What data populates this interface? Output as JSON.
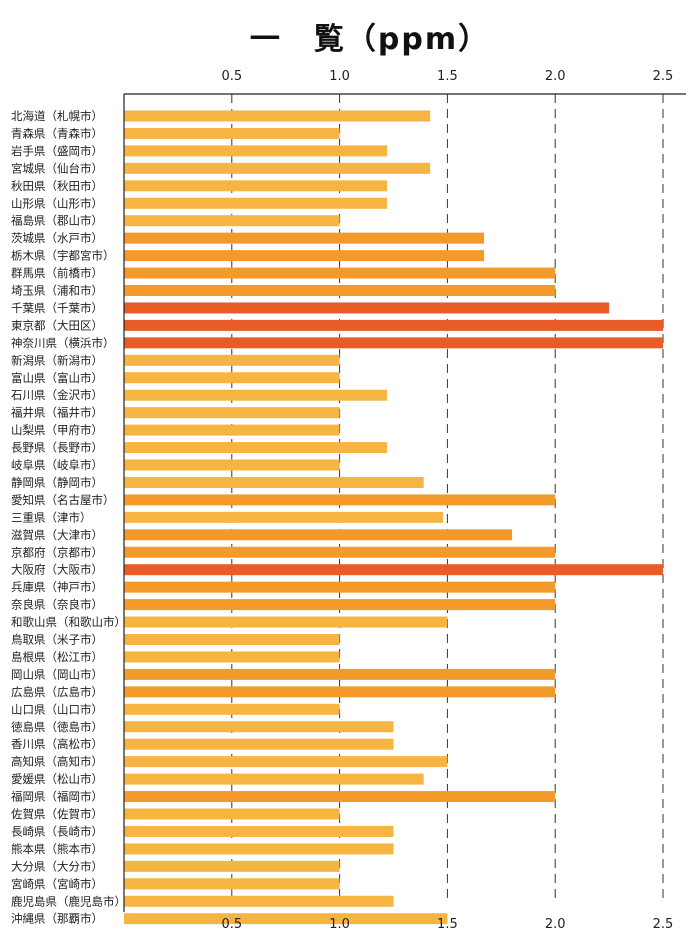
{
  "chart_data": {
    "type": "bar",
    "orientation": "horizontal",
    "title": "一　覧（ppm）",
    "xlabel": "",
    "ylabel": "",
    "xlim": [
      0,
      2.5
    ],
    "ticks": [
      "0.5",
      "1.0",
      "1.5",
      "2.0",
      "2.5"
    ],
    "tick_values": [
      0.5,
      1.0,
      1.5,
      2.0,
      2.5
    ],
    "grid": "vertical dashed",
    "colors": {
      "low": "#F6B443",
      "mid": "#F39A2B",
      "high": "#E85C2A"
    },
    "categories": [
      "北海道（札幌市）",
      "青森県（青森市）",
      "岩手県（盛岡市）",
      "宮城県（仙台市）",
      "秋田県（秋田市）",
      "山形県（山形市）",
      "福島県（郡山市）",
      "茨城県（水戸市）",
      "栃木県（宇都宮市）",
      "群馬県（前橋市）",
      "埼玉県（浦和市）",
      "千葉県（千葉市）",
      "東京都（大田区）",
      "神奈川県（横浜市）",
      "新潟県（新潟市）",
      "富山県（富山市）",
      "石川県（金沢市）",
      "福井県（福井市）",
      "山梨県（甲府市）",
      "長野県（長野市）",
      "岐阜県（岐阜市）",
      "静岡県（静岡市）",
      "愛知県（名古屋市）",
      "三重県（津市）",
      "滋賀県（大津市）",
      "京都府（京都市）",
      "大阪府（大阪市）",
      "兵庫県（神戸市）",
      "奈良県（奈良市）",
      "和歌山県（和歌山市）",
      "鳥取県（米子市）",
      "島根県（松江市）",
      "岡山県（岡山市）",
      "広島県（広島市）",
      "山口県（山口市）",
      "徳島県（徳島市）",
      "香川県（高松市）",
      "高知県（高知市）",
      "愛媛県（松山市）",
      "福岡県（福岡市）",
      "佐賀県（佐賀市）",
      "長崎県（長崎市）",
      "熊本県（熊本市）",
      "大分県（大分市）",
      "宮崎県（宮崎市）",
      "鹿児島県（鹿児島市）",
      "沖縄県（那覇市）"
    ],
    "values": [
      1.42,
      1.0,
      1.22,
      1.42,
      1.22,
      1.22,
      1.0,
      1.67,
      1.67,
      2.0,
      2.0,
      2.25,
      2.5,
      2.5,
      1.0,
      1.0,
      1.22,
      1.0,
      1.0,
      1.22,
      1.0,
      1.39,
      2.0,
      1.48,
      1.8,
      2.0,
      2.5,
      2.0,
      2.0,
      1.5,
      1.0,
      1.0,
      2.0,
      2.0,
      1.0,
      1.25,
      1.25,
      1.5,
      1.39,
      2.0,
      1.0,
      1.25,
      1.25,
      1.0,
      1.0,
      1.25,
      1.5
    ]
  }
}
